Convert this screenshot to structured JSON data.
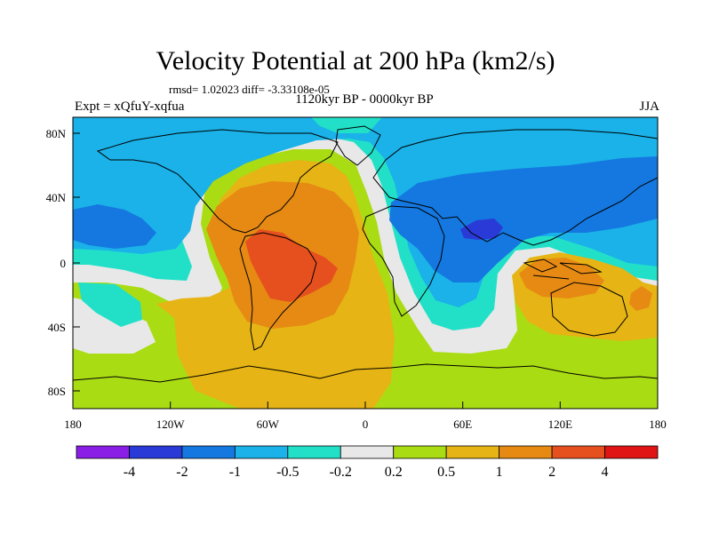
{
  "title": "Velocity Potential at 200 hPa (km2/s)",
  "stats_line": "rmsd= 1.02023 diff= -3.33108e-05",
  "experiment": "Expt = xQfuY-xqfua",
  "period": "1120kyr BP - 0000kyr BP",
  "season": "JJA",
  "x_ticks": [
    "180",
    "120W",
    "60W",
    "0",
    "60E",
    "120E",
    "180"
  ],
  "y_ticks": [
    "80N",
    "40N",
    "0",
    "40S",
    "80S"
  ],
  "colorbar": {
    "colors": [
      "#8a1ee6",
      "#2a3ad6",
      "#1478e0",
      "#1ab2e8",
      "#22e0c8",
      "#e8e8e8",
      "#aadc14",
      "#e6b414",
      "#e68a14",
      "#e6501e",
      "#e01414"
    ],
    "labels": [
      "-4",
      "-2",
      "-1",
      "-0.5",
      "-0.2",
      "0.2",
      "0.5",
      "1",
      "2",
      "4"
    ]
  }
}
